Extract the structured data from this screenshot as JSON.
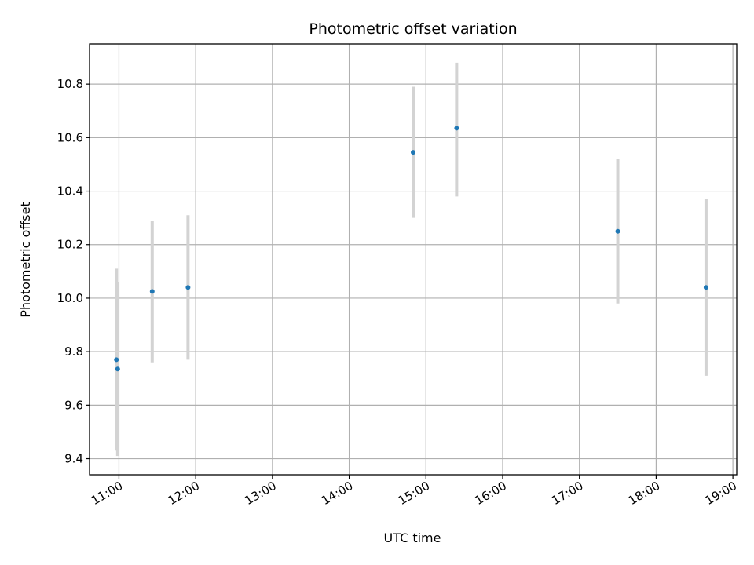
{
  "chart_data": {
    "type": "scatter",
    "title": "Photometric offset variation",
    "xlabel": "UTC time",
    "ylabel": "Photometric offset",
    "x_ticks": [
      "11:00",
      "12:00",
      "13:00",
      "14:00",
      "15:00",
      "16:00",
      "17:00",
      "18:00",
      "19:00"
    ],
    "y_ticks": [
      "9.4",
      "9.6",
      "9.8",
      "10.0",
      "10.2",
      "10.4",
      "10.6",
      "10.8"
    ],
    "xlim": [
      "10:37",
      "19:03"
    ],
    "ylim": [
      9.34,
      10.95
    ],
    "grid": true,
    "points": [
      {
        "x": "10:58",
        "y": 9.77,
        "err_low": 9.43,
        "err_high": 10.11
      },
      {
        "x": "10:59",
        "y": 9.735,
        "err_low": 9.41,
        "err_high": 10.06
      },
      {
        "x": "11:26",
        "y": 10.025,
        "err_low": 9.76,
        "err_high": 10.29
      },
      {
        "x": "11:54",
        "y": 10.04,
        "err_low": 9.77,
        "err_high": 10.31
      },
      {
        "x": "14:50",
        "y": 10.545,
        "err_low": 10.3,
        "err_high": 10.79
      },
      {
        "x": "15:24",
        "y": 10.635,
        "err_low": 10.38,
        "err_high": 10.88
      },
      {
        "x": "17:30",
        "y": 10.25,
        "err_low": 9.98,
        "err_high": 10.52
      },
      {
        "x": "18:39",
        "y": 10.04,
        "err_low": 9.71,
        "err_high": 10.37
      }
    ],
    "colors": {
      "point": "#1f77b4",
      "errorbar": "#d3d3d3",
      "grid": "#b0b0b0"
    }
  }
}
